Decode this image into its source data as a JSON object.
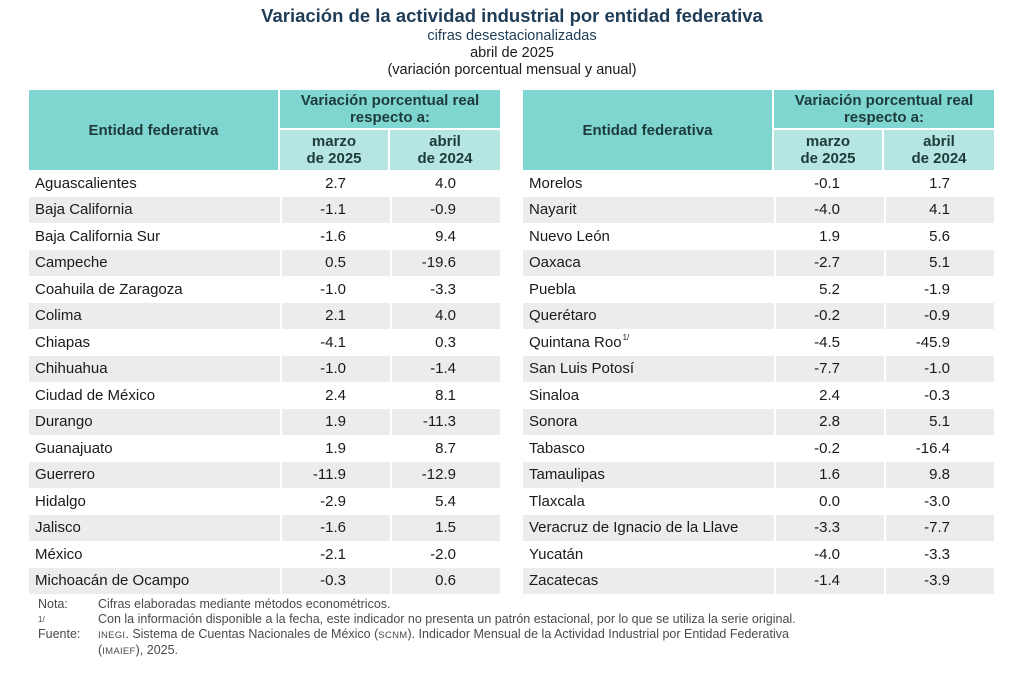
{
  "header": {
    "title": "Variación de la actividad industrial por entidad federativa",
    "subtitle": "cifras desestacionalizadas",
    "period": "abril de 2025",
    "unit": "(variación porcentual mensual y anual)"
  },
  "table_header": {
    "entity": "Entidad federativa",
    "group_line1": "Variación porcentual real",
    "group_line2": "respecto a:",
    "col1_line1": "marzo",
    "col1_line2": "de 2025",
    "col2_line1": "abril",
    "col2_line2": "de 2024"
  },
  "left_table": [
    {
      "entity": "Aguascalientes",
      "monthly": "2.7",
      "annual": "4.0"
    },
    {
      "entity": "Baja California",
      "monthly": "-1.1",
      "annual": "-0.9"
    },
    {
      "entity": "Baja California Sur",
      "monthly": "-1.6",
      "annual": "9.4"
    },
    {
      "entity": "Campeche",
      "monthly": "0.5",
      "annual": "-19.6"
    },
    {
      "entity": "Coahuila de Zaragoza",
      "monthly": "-1.0",
      "annual": "-3.3"
    },
    {
      "entity": "Colima",
      "monthly": "2.1",
      "annual": "4.0"
    },
    {
      "entity": "Chiapas",
      "monthly": "-4.1",
      "annual": "0.3"
    },
    {
      "entity": "Chihuahua",
      "monthly": "-1.0",
      "annual": "-1.4"
    },
    {
      "entity": "Ciudad de México",
      "monthly": "2.4",
      "annual": "8.1"
    },
    {
      "entity": "Durango",
      "monthly": "1.9",
      "annual": "-11.3"
    },
    {
      "entity": "Guanajuato",
      "monthly": "1.9",
      "annual": "8.7"
    },
    {
      "entity": "Guerrero",
      "monthly": "-11.9",
      "annual": "-12.9"
    },
    {
      "entity": "Hidalgo",
      "monthly": "-2.9",
      "annual": "5.4"
    },
    {
      "entity": "Jalisco",
      "monthly": "-1.6",
      "annual": "1.5"
    },
    {
      "entity": "México",
      "monthly": "-2.1",
      "annual": "-2.0"
    },
    {
      "entity": "Michoacán de Ocampo",
      "monthly": "-0.3",
      "annual": "0.6"
    }
  ],
  "right_table": [
    {
      "entity": "Morelos",
      "monthly": "-0.1",
      "annual": "1.7"
    },
    {
      "entity": "Nayarit",
      "monthly": "-4.0",
      "annual": "4.1"
    },
    {
      "entity": "Nuevo León",
      "monthly": "1.9",
      "annual": "5.6"
    },
    {
      "entity": "Oaxaca",
      "monthly": "-2.7",
      "annual": "5.1"
    },
    {
      "entity": "Puebla",
      "monthly": "5.2",
      "annual": "-1.9"
    },
    {
      "entity": "Querétaro",
      "monthly": "-0.2",
      "annual": "-0.9"
    },
    {
      "entity": "Quintana Roo",
      "footnote": "1/",
      "monthly": "-4.5",
      "annual": "-45.9"
    },
    {
      "entity": "San Luis Potosí",
      "monthly": "-7.7",
      "annual": "-1.0"
    },
    {
      "entity": "Sinaloa",
      "monthly": "2.4",
      "annual": "-0.3"
    },
    {
      "entity": "Sonora",
      "monthly": "2.8",
      "annual": "5.1"
    },
    {
      "entity": "Tabasco",
      "monthly": "-0.2",
      "annual": "-16.4"
    },
    {
      "entity": "Tamaulipas",
      "monthly": "1.6",
      "annual": "9.8"
    },
    {
      "entity": "Tlaxcala",
      "monthly": "0.0",
      "annual": "-3.0"
    },
    {
      "entity": "Veracruz de Ignacio de la Llave",
      "monthly": "-3.3",
      "annual": "-7.7"
    },
    {
      "entity": "Yucatán",
      "monthly": "-4.0",
      "annual": "-3.3"
    },
    {
      "entity": "Zacatecas",
      "monthly": "-1.4",
      "annual": "-3.9"
    }
  ],
  "notes": {
    "nota_label": "Nota:",
    "nota_text": "Cifras elaboradas mediante métodos econométricos.",
    "footnote_label": "1/",
    "footnote_text": "Con la información disponible a la fecha, este indicador no presenta un patrón estacional, por lo que se utiliza la serie original.",
    "fuente_label": "Fuente:",
    "fuente_inegi": "INEGI",
    "fuente_text_1": ". Sistema de Cuentas Nacionales de México (",
    "fuente_scnm": "SCNM",
    "fuente_text_2": "). Indicador Mensual de la Actividad Industrial por Entidad Federativa",
    "fuente_imaief": "IMAIEF",
    "fuente_text_3": "), 2025.",
    "fuente_open_paren": "("
  },
  "colors": {
    "header_primary": "#7fd6d0",
    "header_secondary": "#b6e6e2",
    "row_alt": "#ececec",
    "title": "#1f3d57"
  }
}
